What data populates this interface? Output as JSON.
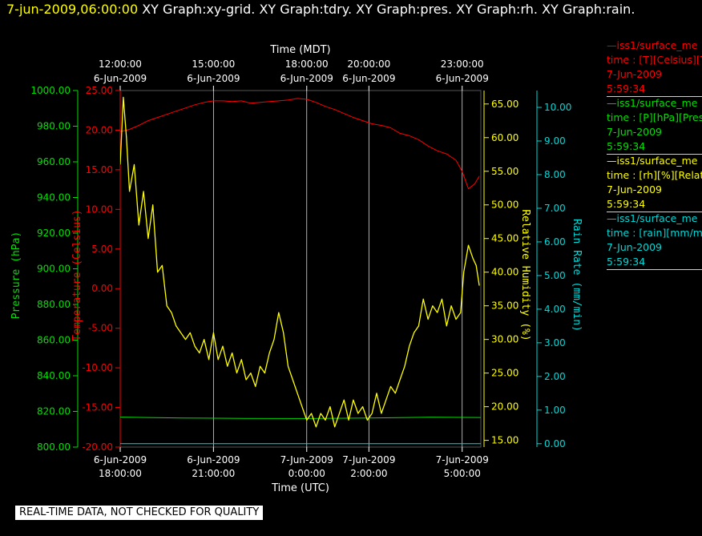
{
  "header": {
    "datetime": "7-jun-2009,06:00:00",
    "graphs": [
      "XY Graph:xy-grid.",
      "XY Graph:tdry.",
      "XY Graph:pres.",
      "XY Graph:rh.",
      "XY Graph:rain."
    ]
  },
  "colors": {
    "background": "#000000",
    "temperature": "#ff0000",
    "pressure": "#00e000",
    "humidity": "#ffff00",
    "rain": "#00d8d8",
    "grid": "#ffffff",
    "text": "#ffffff"
  },
  "legend": [
    {
      "name": "legend-temperature",
      "color": "#ff0000",
      "lines": [
        "—iss1/surface_me",
        "time : [T][Celsius][T",
        "7-Jun-2009",
        "5:59:34"
      ]
    },
    {
      "name": "legend-pressure",
      "color": "#00e000",
      "lines": [
        "—iss1/surface_me",
        "time : [P][hPa][Pres",
        "7-Jun-2009",
        "5:59:34"
      ]
    },
    {
      "name": "legend-humidity",
      "color": "#ffff00",
      "lines": [
        "—iss1/surface_me",
        "time : [rh][%][Relati",
        "7-Jun-2009",
        "5:59:34"
      ]
    },
    {
      "name": "legend-rain",
      "color": "#00d8d8",
      "lines": [
        "—iss1/surface_me",
        "time : [rain][mm/min",
        "7-Jun-2009",
        "5:59:34"
      ]
    }
  ],
  "notice": "REAL-TIME DATA, NOT CHECKED FOR QUALITY",
  "chart_data": {
    "type": "line",
    "xlabel_bottom": "Time (UTC)",
    "xlabel_top": "Time (MDT)",
    "x_unit": "hours since 6-Jun-2009 18:00 UTC",
    "xlim": [
      0,
      11.6
    ],
    "grid": true,
    "x_ticks_bottom": [
      {
        "x": 0,
        "date": "6-Jun-2009",
        "time": "18:00:00"
      },
      {
        "x": 3,
        "date": "6-Jun-2009",
        "time": "21:00:00"
      },
      {
        "x": 6,
        "date": "7-Jun-2009",
        "time": "0:00:00"
      },
      {
        "x": 8,
        "date": "7-Jun-2009",
        "time": "2:00:00"
      },
      {
        "x": 11,
        "date": "7-Jun-2009",
        "time": "5:00:00"
      }
    ],
    "x_ticks_top": [
      {
        "x": 0,
        "time": "12:00:00",
        "date": "6-Jun-2009"
      },
      {
        "x": 3,
        "time": "15:00:00",
        "date": "6-Jun-2009"
      },
      {
        "x": 6,
        "time": "18:00:00",
        "date": "6-Jun-2009"
      },
      {
        "x": 8,
        "time": "20:00:00",
        "date": "6-Jun-2009"
      },
      {
        "x": 11,
        "time": "23:00:00",
        "date": "6-Jun-2009"
      }
    ],
    "axes": {
      "pressure": {
        "label": "Pressure (hPa)",
        "range": [
          800,
          1000
        ],
        "ticks": [
          "800.00",
          "820.00",
          "840.00",
          "860.00",
          "880.00",
          "900.00",
          "920.00",
          "940.00",
          "960.00",
          "980.00",
          "1000.00"
        ]
      },
      "temperature": {
        "label": "Temperature (Celsius)",
        "range": [
          -20,
          25
        ],
        "ticks": [
          "-20.00",
          "-15.00",
          "-10.00",
          "-5.00",
          "0.00",
          "5.00",
          "10.00",
          "15.00",
          "20.00",
          "25.00"
        ]
      },
      "humidity": {
        "label": "Relative Humidity (%)",
        "range": [
          14,
          67
        ],
        "ticks": [
          "15.00",
          "20.00",
          "25.00",
          "30.00",
          "35.00",
          "40.00",
          "45.00",
          "50.00",
          "55.00",
          "60.00",
          "65.00"
        ]
      },
      "rain": {
        "label": "Rain Rate (mm/min)",
        "range": [
          -0.1,
          10.5
        ],
        "ticks": [
          "0.00",
          "1.00",
          "2.00",
          "3.00",
          "4.00",
          "5.00",
          "6.00",
          "7.00",
          "8.00",
          "9.00",
          "10.00"
        ]
      }
    },
    "series": [
      {
        "name": "temperature",
        "axis": "temperature",
        "x": [
          0,
          0.3,
          0.6,
          0.9,
          1.2,
          1.5,
          1.8,
          2.1,
          2.4,
          2.7,
          3.0,
          3.3,
          3.6,
          3.9,
          4.2,
          4.5,
          4.8,
          5.1,
          5.4,
          5.7,
          6.0,
          6.3,
          6.6,
          6.9,
          7.2,
          7.5,
          7.8,
          8.1,
          8.4,
          8.7,
          9.0,
          9.3,
          9.6,
          9.9,
          10.2,
          10.5,
          10.8,
          11.0,
          11.2,
          11.4,
          11.55
        ],
        "y": [
          19.8,
          20.1,
          20.6,
          21.2,
          21.6,
          22.0,
          22.4,
          22.8,
          23.2,
          23.5,
          23.7,
          23.7,
          23.6,
          23.7,
          23.4,
          23.5,
          23.6,
          23.7,
          23.8,
          24.0,
          23.9,
          23.5,
          23.0,
          22.6,
          22.1,
          21.6,
          21.2,
          20.8,
          20.6,
          20.3,
          19.6,
          19.3,
          18.8,
          18.0,
          17.4,
          17.0,
          16.2,
          14.8,
          12.6,
          13.2,
          14.2
        ]
      },
      {
        "name": "pressure",
        "axis": "pressure",
        "x": [
          0,
          2,
          4,
          6,
          8,
          10,
          11.6
        ],
        "y": [
          816.8,
          816.3,
          816.1,
          816.0,
          816.3,
          816.7,
          816.6
        ]
      },
      {
        "name": "humidity",
        "axis": "humidity",
        "x": [
          0,
          0.1,
          0.2,
          0.3,
          0.45,
          0.6,
          0.75,
          0.9,
          1.05,
          1.2,
          1.35,
          1.5,
          1.65,
          1.8,
          1.95,
          2.1,
          2.25,
          2.4,
          2.55,
          2.7,
          2.85,
          3.0,
          3.15,
          3.3,
          3.45,
          3.6,
          3.75,
          3.9,
          4.05,
          4.2,
          4.35,
          4.5,
          4.65,
          4.8,
          4.95,
          5.1,
          5.25,
          5.4,
          5.55,
          5.7,
          5.85,
          6.0,
          6.15,
          6.3,
          6.45,
          6.6,
          6.75,
          6.9,
          7.05,
          7.2,
          7.35,
          7.5,
          7.65,
          7.8,
          7.95,
          8.1,
          8.25,
          8.4,
          8.55,
          8.7,
          8.85,
          9.0,
          9.15,
          9.3,
          9.45,
          9.6,
          9.75,
          9.9,
          10.05,
          10.2,
          10.35,
          10.5,
          10.65,
          10.8,
          10.95,
          11.05,
          11.2,
          11.35,
          11.45,
          11.55
        ],
        "y": [
          56,
          66,
          60,
          52,
          56,
          47,
          52,
          45,
          50,
          40,
          41,
          35,
          34,
          32,
          31,
          30,
          31,
          29,
          28,
          30,
          27,
          31,
          27,
          29,
          26,
          28,
          25,
          27,
          24,
          25,
          23,
          26,
          25,
          28,
          30,
          34,
          31,
          26,
          24,
          22,
          20,
          18,
          19,
          17,
          19,
          18,
          20,
          17,
          19,
          21,
          18,
          21,
          19,
          20,
          18,
          19,
          22,
          19,
          21,
          23,
          22,
          24,
          26,
          29,
          31,
          32,
          36,
          33,
          35,
          34,
          36,
          32,
          35,
          33,
          34,
          40,
          44,
          42,
          41,
          38
        ]
      },
      {
        "name": "rain",
        "axis": "rain",
        "x": [
          0,
          11.6
        ],
        "y": [
          0.0,
          0.0
        ]
      }
    ]
  }
}
